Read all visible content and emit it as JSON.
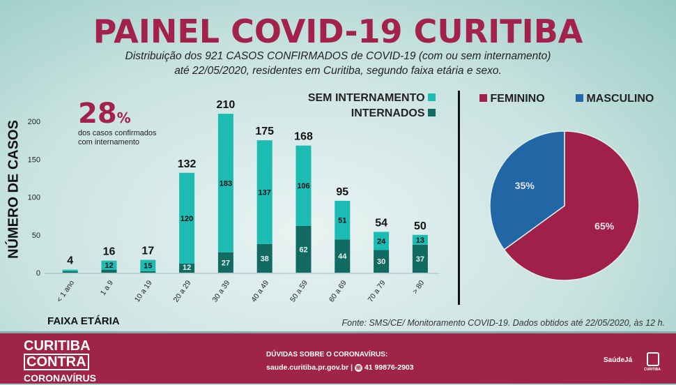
{
  "header": {
    "title": "PAINEL COVID-19 CURITIBA",
    "subtitle_line1": "Distribuição dos 921 CASOS CONFIRMADOS de COVID-19 (com ou sem internamento)",
    "subtitle_line2": "até 22/05/2020, residentes em Curitiba, segundo faixa etária e sexo."
  },
  "highlight": {
    "value": "28",
    "unit": "%",
    "line1": "dos casos confirmados",
    "line2": "com internamento"
  },
  "colors": {
    "sem_internamento": "#1cbcb4",
    "internados": "#116b63",
    "feminino": "#a0204a",
    "masculino": "#2167a6",
    "brand": "#9f2448"
  },
  "chart_data": [
    {
      "type": "bar",
      "stacked": true,
      "xlabel": "FAIXA ETÁRIA",
      "ylabel": "NÚMERO DE CASOS",
      "ylim": [
        0,
        210
      ],
      "yticks": [
        0,
        50,
        100,
        150,
        200
      ],
      "categories": [
        "< 1 ano",
        "1 a 9",
        "10 a 19",
        "20 a 29",
        "30 a 39",
        "40 a 49",
        "50 a 59",
        "60 a 69",
        "70 a 79",
        "> 80"
      ],
      "totals": [
        4,
        16,
        17,
        132,
        210,
        175,
        168,
        95,
        54,
        50
      ],
      "series": [
        {
          "name": "INTERNADOS",
          "values": [
            2,
            4,
            2,
            12,
            27,
            38,
            62,
            44,
            30,
            37
          ],
          "labels": [
            "",
            "",
            "",
            "12",
            "27",
            "38",
            "62",
            "44",
            "30",
            "37"
          ]
        },
        {
          "name": "SEM INTERNAMENTO",
          "values": [
            2,
            12,
            15,
            120,
            183,
            137,
            106,
            51,
            24,
            13
          ],
          "labels": [
            "",
            "12",
            "15",
            "120",
            "183",
            "137",
            "106",
            "51",
            "24",
            "13"
          ]
        }
      ],
      "legend": "top-right"
    },
    {
      "type": "pie",
      "slices": [
        {
          "name": "FEMININO",
          "value": 65,
          "label": "65%"
        },
        {
          "name": "MASCULINO",
          "value": 35,
          "label": "35%"
        }
      ],
      "legend": "top"
    }
  ],
  "source": "Fonte: SMS/CE/ Monitoramento COVID-19. Dados obtidos até 22/05/2020, às 12 h.",
  "footer": {
    "logo_line1": "CURITIBA",
    "logo_line2": "CONTRA",
    "logo_line3": "CORONAVÍRUS",
    "question": "DÚVIDAS SOBRE O CORONAVÍRUS:",
    "site": "saude.curitiba.pr.gov.br |",
    "phone": "41 99876-2903",
    "saude_logo": "SaúdeJá",
    "city_logo": "CURITIBA"
  }
}
